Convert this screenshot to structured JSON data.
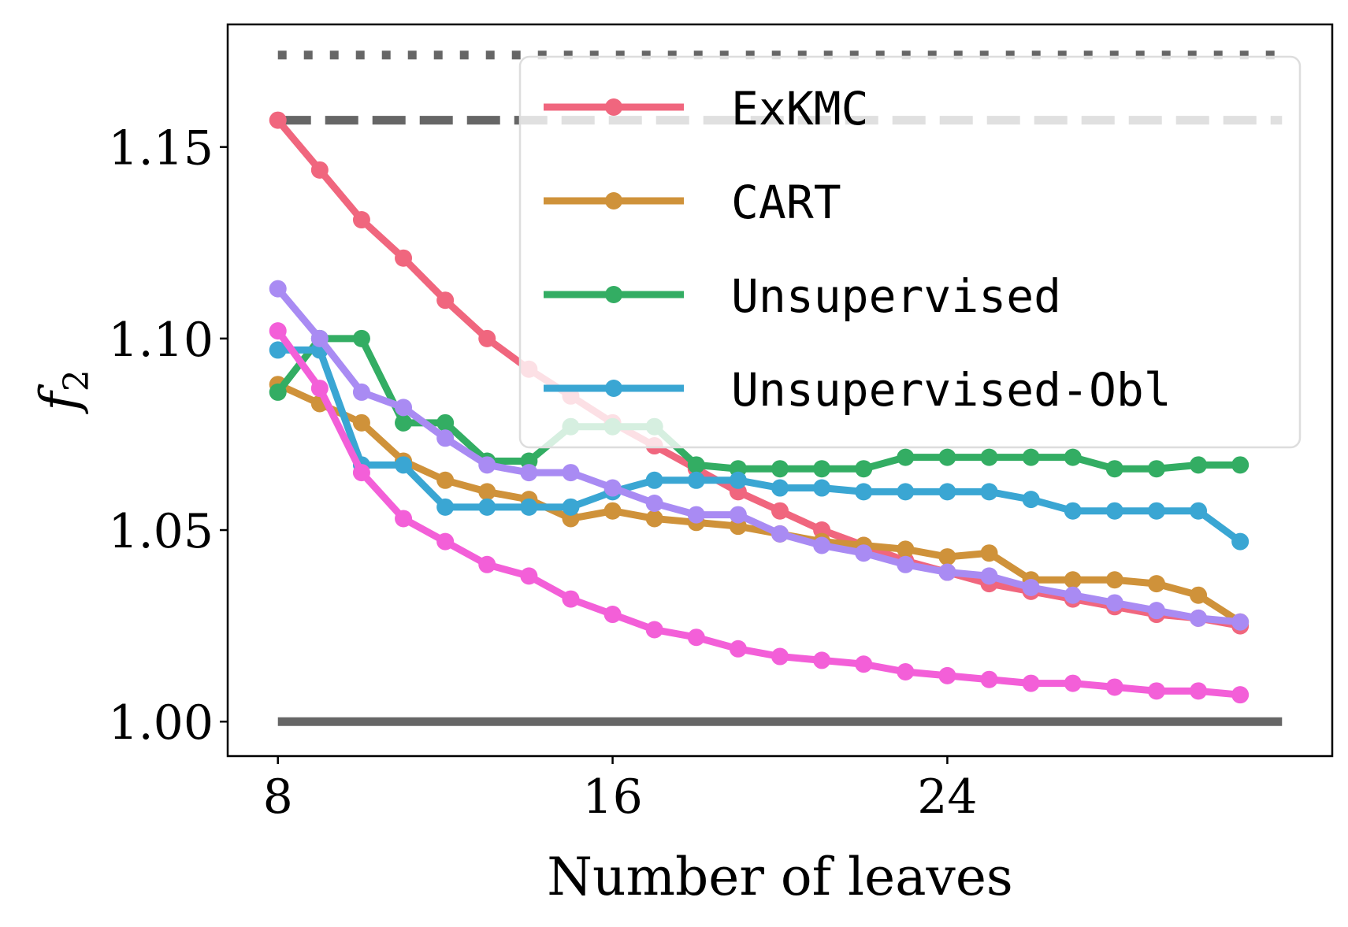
{
  "chart_data": {
    "type": "line",
    "xlabel": "Number of leaves",
    "ylabel": "f",
    "ylabel_subscript": "2",
    "xlim": [
      6.8,
      33.2
    ],
    "ylim": [
      0.991,
      1.182
    ],
    "x_ticks": [
      8,
      16,
      24
    ],
    "x_tick_labels": [
      "8",
      "16",
      "24"
    ],
    "y_ticks": [
      1.0,
      1.05,
      1.1,
      1.15
    ],
    "y_tick_labels": [
      "1.00",
      "1.05",
      "1.10",
      "1.15"
    ],
    "legend_placement": "top-right",
    "x": [
      8,
      9,
      10,
      11,
      12,
      13,
      14,
      15,
      16,
      17,
      18,
      19,
      20,
      21,
      22,
      23,
      24,
      25,
      26,
      27,
      28,
      29,
      30,
      31
    ],
    "series": [
      {
        "name": "ExKMC",
        "color": "#f0667e",
        "in_legend": true,
        "values": [
          1.157,
          1.144,
          1.131,
          1.121,
          1.11,
          1.1,
          1.092,
          1.085,
          1.078,
          1.072,
          1.066,
          1.06,
          1.055,
          1.05,
          1.046,
          1.042,
          1.039,
          1.036,
          1.034,
          1.032,
          1.03,
          1.028,
          1.027,
          1.025
        ]
      },
      {
        "name": "CART",
        "color": "#cf923a",
        "in_legend": true,
        "values": [
          1.088,
          1.083,
          1.078,
          1.068,
          1.063,
          1.06,
          1.058,
          1.053,
          1.055,
          1.053,
          1.052,
          1.051,
          1.049,
          1.047,
          1.046,
          1.045,
          1.043,
          1.044,
          1.037,
          1.037,
          1.037,
          1.036,
          1.033,
          1.026
        ]
      },
      {
        "name": "Unsupervised",
        "color": "#33ad63",
        "in_legend": true,
        "values": [
          1.086,
          1.1,
          1.1,
          1.078,
          1.078,
          1.068,
          1.068,
          1.077,
          1.077,
          1.077,
          1.067,
          1.066,
          1.066,
          1.066,
          1.066,
          1.069,
          1.069,
          1.069,
          1.069,
          1.069,
          1.066,
          1.066,
          1.067,
          1.067
        ]
      },
      {
        "name": "Unsupervised-Obl",
        "color": "#3aa6d3",
        "in_legend": true,
        "values": [
          1.097,
          1.097,
          1.067,
          1.067,
          1.056,
          1.056,
          1.056,
          1.056,
          1.06,
          1.063,
          1.063,
          1.063,
          1.061,
          1.061,
          1.06,
          1.06,
          1.06,
          1.06,
          1.058,
          1.055,
          1.055,
          1.055,
          1.055,
          1.047
        ]
      },
      {
        "name": "",
        "color": "#a98bf3",
        "in_legend": false,
        "values": [
          1.113,
          1.1,
          1.086,
          1.082,
          1.074,
          1.067,
          1.065,
          1.065,
          1.061,
          1.057,
          1.054,
          1.054,
          1.049,
          1.046,
          1.044,
          1.041,
          1.039,
          1.038,
          1.035,
          1.033,
          1.031,
          1.029,
          1.027,
          1.026
        ]
      },
      {
        "name": "",
        "color": "#f35fd8",
        "in_legend": false,
        "values": [
          1.102,
          1.087,
          1.065,
          1.053,
          1.047,
          1.041,
          1.038,
          1.032,
          1.028,
          1.024,
          1.022,
          1.019,
          1.017,
          1.016,
          1.015,
          1.013,
          1.012,
          1.011,
          1.01,
          1.01,
          1.009,
          1.008,
          1.008,
          1.007
        ]
      }
    ],
    "reference_lines": [
      {
        "y": 1.174,
        "style": "dotted",
        "color": "#666666",
        "x_from": 8,
        "x_to": 32
      },
      {
        "y": 1.157,
        "style": "dashed",
        "color": "#666666",
        "x_from": 8,
        "x_to": 32
      },
      {
        "y": 1.0,
        "style": "solid",
        "color": "#666666",
        "x_from": 8,
        "x_to": 32
      }
    ]
  }
}
